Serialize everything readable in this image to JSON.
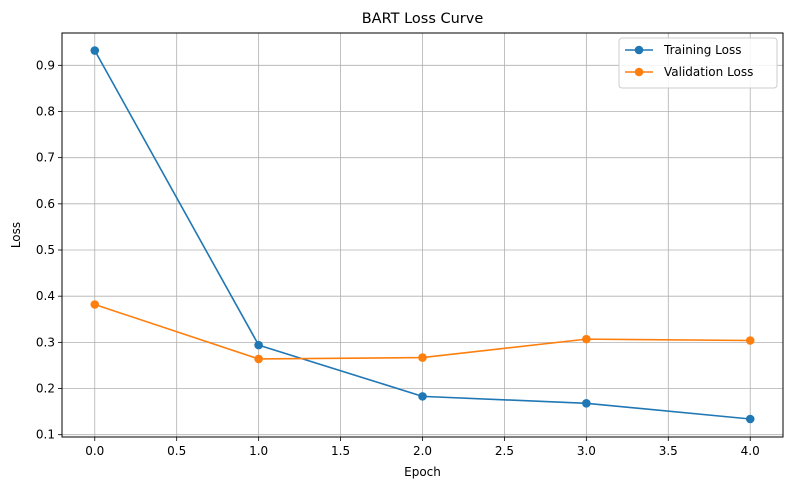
{
  "chart_data": {
    "type": "line",
    "title": "BART Loss Curve",
    "xlabel": "Epoch",
    "ylabel": "Loss",
    "x": [
      0,
      1,
      2,
      3,
      4
    ],
    "xlim": [
      -0.2,
      4.2
    ],
    "ylim": [
      0.095,
      0.97
    ],
    "xticks": [
      0.0,
      0.5,
      1.0,
      1.5,
      2.0,
      2.5,
      3.0,
      3.5,
      4.0
    ],
    "xtick_labels": [
      "0.0",
      "0.5",
      "1.0",
      "1.5",
      "2.0",
      "2.5",
      "3.0",
      "3.5",
      "4.0"
    ],
    "yticks": [
      0.1,
      0.2,
      0.3,
      0.4,
      0.5,
      0.6,
      0.7,
      0.8,
      0.9
    ],
    "ytick_labels": [
      "0.1",
      "0.2",
      "0.3",
      "0.4",
      "0.5",
      "0.6",
      "0.7",
      "0.8",
      "0.9"
    ],
    "grid": true,
    "legend_position": "top-right",
    "series": [
      {
        "name": "Training Loss",
        "color": "#1f77b4",
        "values": [
          0.932,
          0.294,
          0.183,
          0.168,
          0.134
        ],
        "marker": "circle"
      },
      {
        "name": "Validation Loss",
        "color": "#ff7f0e",
        "values": [
          0.382,
          0.264,
          0.267,
          0.307,
          0.304
        ],
        "marker": "circle"
      }
    ]
  }
}
